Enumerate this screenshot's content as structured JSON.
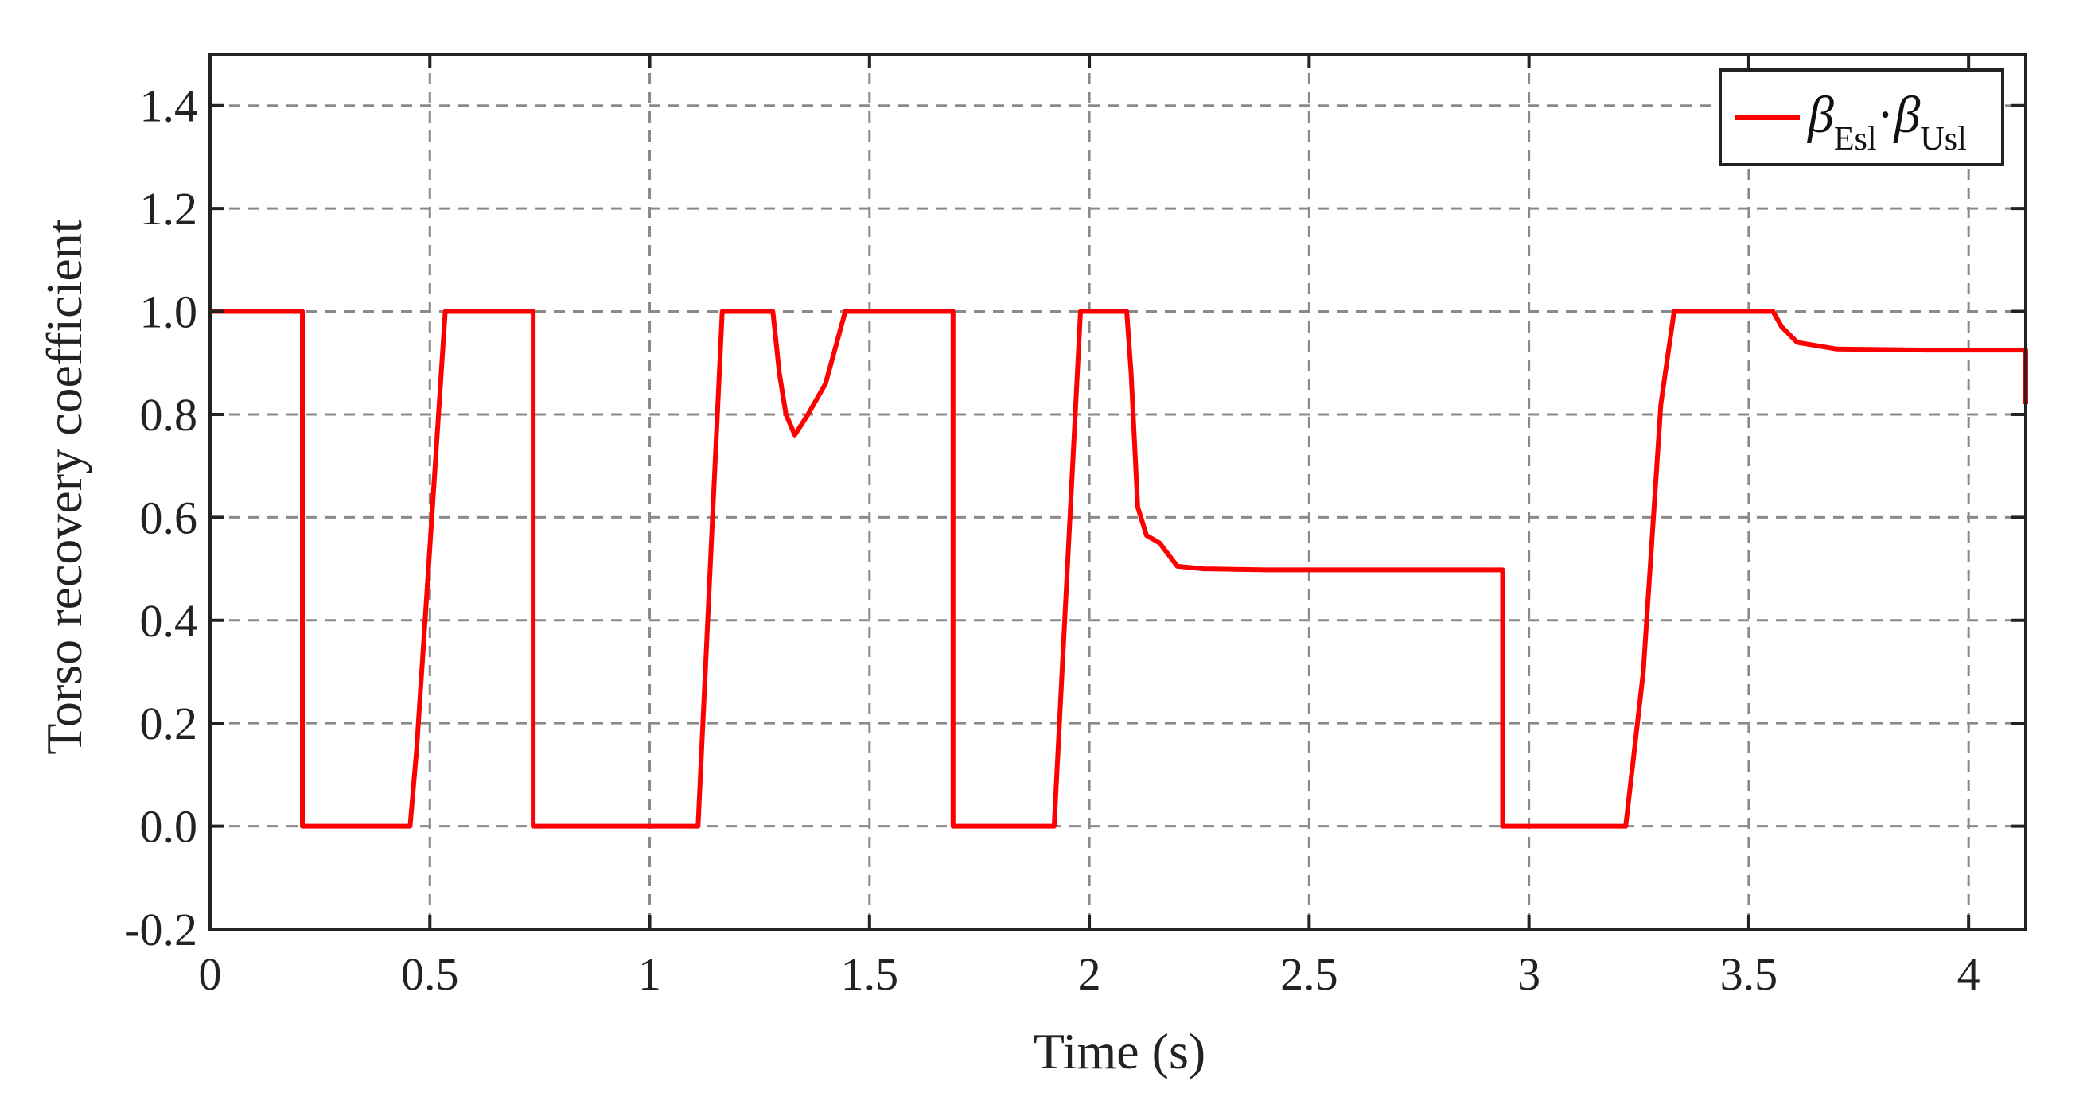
{
  "chart_data": {
    "type": "line",
    "title": "",
    "xlabel": "Time (s)",
    "ylabel": "Torso recovery coefficient",
    "xlim": [
      0,
      4.13
    ],
    "ylim": [
      -0.2,
      1.5
    ],
    "x_ticks": [
      0,
      0.5,
      1,
      1.5,
      2,
      2.5,
      3,
      3.5,
      4
    ],
    "x_tick_labels": [
      "0",
      "0.5",
      "1",
      "1.5",
      "2",
      "2.5",
      "3",
      "3.5",
      "4"
    ],
    "y_ticks": [
      -0.2,
      0.0,
      0.2,
      0.4,
      0.6,
      0.8,
      1.0,
      1.2,
      1.4
    ],
    "y_tick_labels": [
      "-0.2",
      "0.0",
      "0.2",
      "0.4",
      "0.6",
      "0.8",
      "1.0",
      "1.2",
      "1.4"
    ],
    "grid": true,
    "legend_position": "top-right",
    "legend": {
      "symbol1": "β",
      "sub1": "Esl",
      "dot": "·",
      "symbol2": "β",
      "sub2": "Usl"
    },
    "series": [
      {
        "name": "βEsl·βUsl",
        "color": "#ff0000",
        "x": [
          0,
          0,
          0.21,
          0.21,
          0.455,
          0.47,
          0.535,
          0.735,
          0.735,
          1.11,
          1.165,
          1.28,
          1.295,
          1.31,
          1.33,
          1.36,
          1.4,
          1.445,
          1.69,
          1.69,
          1.92,
          1.98,
          2.085,
          2.095,
          2.11,
          2.13,
          2.16,
          2.2,
          2.26,
          2.4,
          2.6,
          2.8,
          2.94,
          2.94,
          3.22,
          3.26,
          3.3,
          3.33,
          3.555,
          3.575,
          3.61,
          3.7,
          3.9,
          4.13,
          4.13
        ],
        "y": [
          0,
          1.0,
          1.0,
          0.0,
          0.0,
          0.15,
          1.0,
          1.0,
          0.0,
          0.0,
          1.0,
          1.0,
          0.88,
          0.8,
          0.76,
          0.8,
          0.86,
          1.0,
          1.0,
          0.0,
          0.0,
          1.0,
          1.0,
          0.88,
          0.62,
          0.565,
          0.55,
          0.505,
          0.5,
          0.498,
          0.498,
          0.498,
          0.498,
          0.0,
          0.0,
          0.3,
          0.82,
          1.0,
          1.0,
          0.97,
          0.94,
          0.927,
          0.925,
          0.925,
          0.82
        ]
      }
    ]
  }
}
